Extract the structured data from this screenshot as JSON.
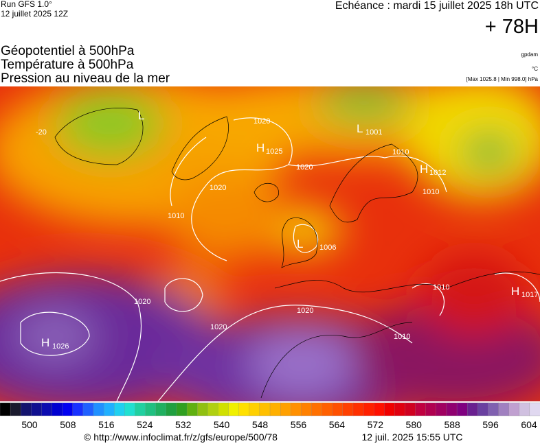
{
  "header": {
    "run": "Run GFS 1.0°",
    "run_date": "12 juillet 2025 12Z",
    "valid": "Echéance : mardi 15 juillet 2025 18h UTC",
    "lead": "+ 78H",
    "titles": [
      "Géopotentiel à 500hPa",
      "Température à 500hPa",
      "Pression au niveau de la mer"
    ],
    "units": [
      "gpdam",
      "°C",
      "[Max 1025.8 | Min 998.0] hPa"
    ]
  },
  "map": {
    "labels": [
      "1020",
      "H",
      "1025",
      "1020",
      "L",
      "1001",
      "1010",
      "H",
      "1012",
      "1010",
      "1020",
      "1010",
      "L",
      "1006",
      "1020",
      "1020",
      "1020",
      "1010",
      "1010",
      "H",
      "1017",
      "H",
      "1026",
      "L",
      "-20"
    ]
  },
  "colorbar": {
    "ticks": [
      500,
      508,
      516,
      524,
      532,
      540,
      548,
      556,
      564,
      572,
      580,
      588,
      596,
      604
    ]
  },
  "footer": {
    "url": "© http://www.infoclimat.fr/z/gfs/europe/500/78",
    "generated": "12 juil. 2025 15:55 UTC"
  }
}
